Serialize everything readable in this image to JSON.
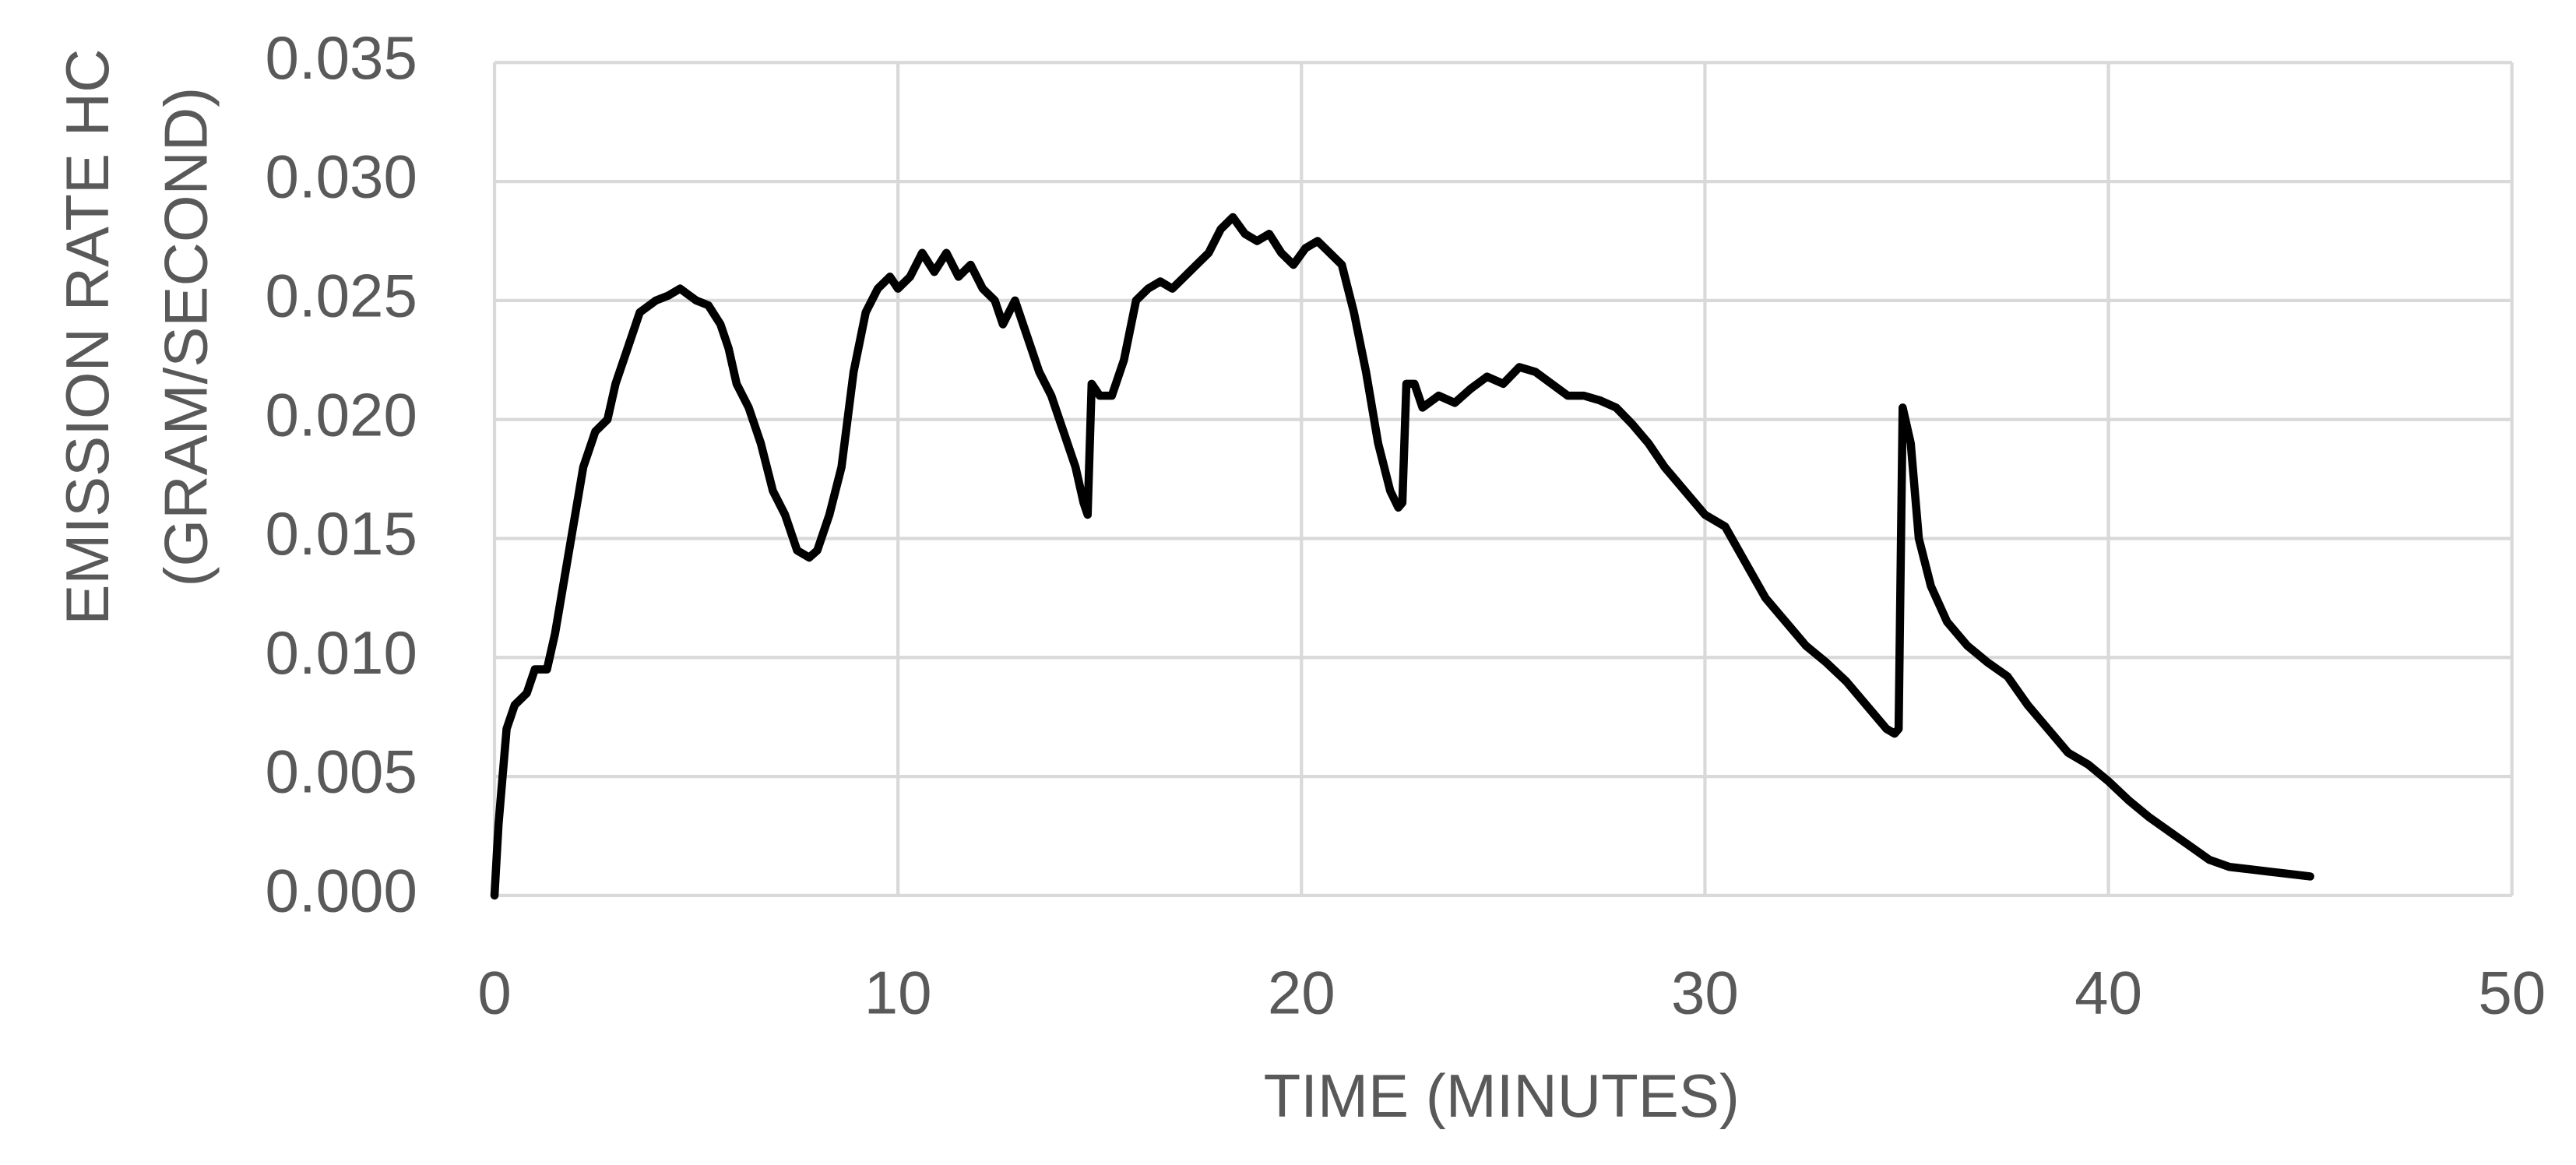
{
  "chart_data": {
    "type": "line",
    "x_label": "TIME (MINUTES)",
    "y_label": [
      "EMISSION RATE HC",
      "(GRAM/SECOND)"
    ],
    "x": [
      0,
      0.1,
      0.3,
      0.5,
      0.8,
      1.0,
      1.3,
      1.5,
      1.8,
      2.0,
      2.2,
      2.5,
      2.8,
      3.0,
      3.3,
      3.6,
      4.0,
      4.3,
      4.6,
      5.0,
      5.3,
      5.6,
      5.8,
      6.0,
      6.3,
      6.6,
      6.9,
      7.2,
      7.5,
      7.8,
      8.0,
      8.3,
      8.6,
      8.9,
      9.2,
      9.5,
      9.8,
      10.0,
      10.3,
      10.6,
      10.9,
      11.2,
      11.5,
      11.8,
      12.1,
      12.4,
      12.6,
      12.9,
      13.2,
      13.5,
      13.8,
      14.1,
      14.4,
      14.6,
      14.7,
      14.8,
      15.0,
      15.3,
      15.6,
      15.9,
      16.2,
      16.5,
      16.8,
      17.1,
      17.4,
      17.7,
      18.0,
      18.3,
      18.6,
      18.9,
      19.2,
      19.5,
      19.8,
      20.1,
      20.4,
      20.7,
      21.0,
      21.3,
      21.6,
      21.9,
      22.2,
      22.4,
      22.5,
      22.6,
      22.8,
      23.0,
      23.4,
      23.8,
      24.2,
      24.6,
      25.0,
      25.4,
      25.8,
      26.2,
      26.6,
      27.0,
      27.4,
      27.8,
      28.2,
      28.6,
      29.0,
      29.5,
      30.0,
      30.5,
      31.0,
      31.5,
      32.0,
      32.5,
      33.0,
      33.5,
      34.0,
      34.5,
      34.7,
      34.8,
      34.9,
      35.1,
      35.3,
      35.6,
      36.0,
      36.5,
      37.0,
      37.5,
      38.0,
      38.5,
      39.0,
      39.5,
      40.0,
      40.5,
      41.0,
      41.5,
      42.0,
      42.5,
      43.0,
      43.5,
      44.0,
      44.5,
      45.0
    ],
    "values": [
      0,
      0.003,
      0.007,
      0.008,
      0.0085,
      0.0095,
      0.0095,
      0.011,
      0.014,
      0.016,
      0.018,
      0.0195,
      0.02,
      0.0215,
      0.023,
      0.0245,
      0.025,
      0.0252,
      0.0255,
      0.025,
      0.0248,
      0.024,
      0.023,
      0.0215,
      0.0205,
      0.019,
      0.017,
      0.016,
      0.0145,
      0.0142,
      0.0145,
      0.016,
      0.018,
      0.022,
      0.0245,
      0.0255,
      0.026,
      0.0255,
      0.026,
      0.027,
      0.0262,
      0.027,
      0.026,
      0.0265,
      0.0255,
      0.025,
      0.024,
      0.025,
      0.0235,
      0.022,
      0.021,
      0.0195,
      0.018,
      0.0165,
      0.016,
      0.0215,
      0.021,
      0.021,
      0.0225,
      0.025,
      0.0255,
      0.0258,
      0.0255,
      0.026,
      0.0265,
      0.027,
      0.028,
      0.0285,
      0.0278,
      0.0275,
      0.0278,
      0.027,
      0.0265,
      0.0272,
      0.0275,
      0.027,
      0.0265,
      0.0245,
      0.022,
      0.019,
      0.017,
      0.0163,
      0.0165,
      0.0215,
      0.0215,
      0.0205,
      0.021,
      0.0207,
      0.0213,
      0.0218,
      0.0215,
      0.0222,
      0.022,
      0.0215,
      0.021,
      0.021,
      0.0208,
      0.0205,
      0.0198,
      0.019,
      0.018,
      0.017,
      0.016,
      0.0155,
      0.014,
      0.0125,
      0.0115,
      0.0105,
      0.0098,
      0.009,
      0.008,
      0.007,
      0.0068,
      0.007,
      0.0205,
      0.019,
      0.015,
      0.013,
      0.0115,
      0.0105,
      0.0098,
      0.0092,
      0.008,
      0.007,
      0.006,
      0.0055,
      0.0048,
      0.004,
      0.0033,
      0.0027,
      0.0021,
      0.0015,
      0.0012,
      0.0011,
      0.001,
      0.0009,
      0.0008
    ],
    "color": "#000000",
    "xlim": [
      0,
      50
    ],
    "xticks": [
      0,
      10,
      20,
      30,
      40,
      50
    ],
    "ylim": [
      0,
      0.035
    ],
    "yticks": [
      {
        "value": 0,
        "label": "0.000"
      },
      0.005,
      {
        "value": 0.01,
        "label": "0.010"
      },
      0.015,
      {
        "value": 0.02,
        "label": "0.020"
      },
      0.025,
      {
        "value": 0.03,
        "label": "0.030"
      },
      0.035
    ],
    "grid": true
  }
}
